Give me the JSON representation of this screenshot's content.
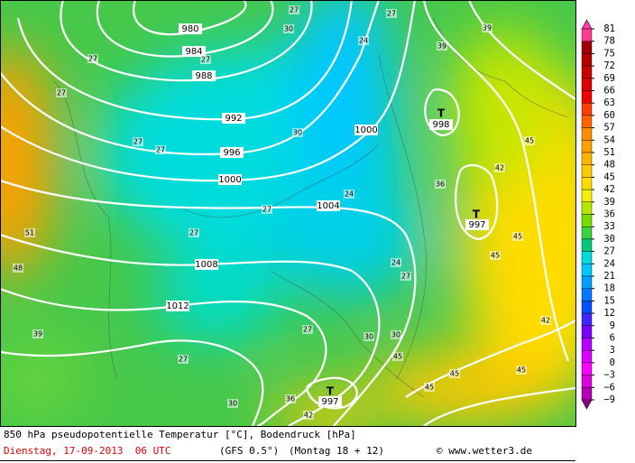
{
  "map": {
    "isobar_labels": [
      "980",
      "984",
      "988",
      "992",
      "996",
      "1000",
      "1004",
      "1008",
      "1012",
      "1000",
      "998",
      "997",
      "997"
    ],
    "low_markers": [
      "T",
      "T",
      "T"
    ],
    "temperature_labels": [
      "27",
      "27",
      "30",
      "24",
      "39",
      "27",
      "27",
      "27",
      "27",
      "27",
      "30",
      "24",
      "36",
      "42",
      "45",
      "27",
      "27",
      "51",
      "48",
      "24",
      "27",
      "45",
      "45",
      "42",
      "39",
      "27",
      "27",
      "30",
      "30",
      "45",
      "45",
      "45",
      "30",
      "36",
      "42",
      "45",
      "39"
    ]
  },
  "colorbar": {
    "labels": [
      "81",
      "78",
      "75",
      "72",
      "69",
      "66",
      "63",
      "60",
      "57",
      "54",
      "51",
      "48",
      "45",
      "42",
      "39",
      "36",
      "33",
      "30",
      "27",
      "24",
      "21",
      "18",
      "15",
      "12",
      "9",
      "6",
      "3",
      "0",
      "−3",
      "−6",
      "−9"
    ]
  },
  "footer": {
    "title": "850 hPa pseudopotentielle Temperatur [°C], Bodendruck [hPa]",
    "date": "Dienstag, 17-09-2013  06 UTC",
    "model": "(GFS 0.5°)",
    "run": "(Montag 18 + 12)",
    "credit": "© www.wetter3.de"
  }
}
